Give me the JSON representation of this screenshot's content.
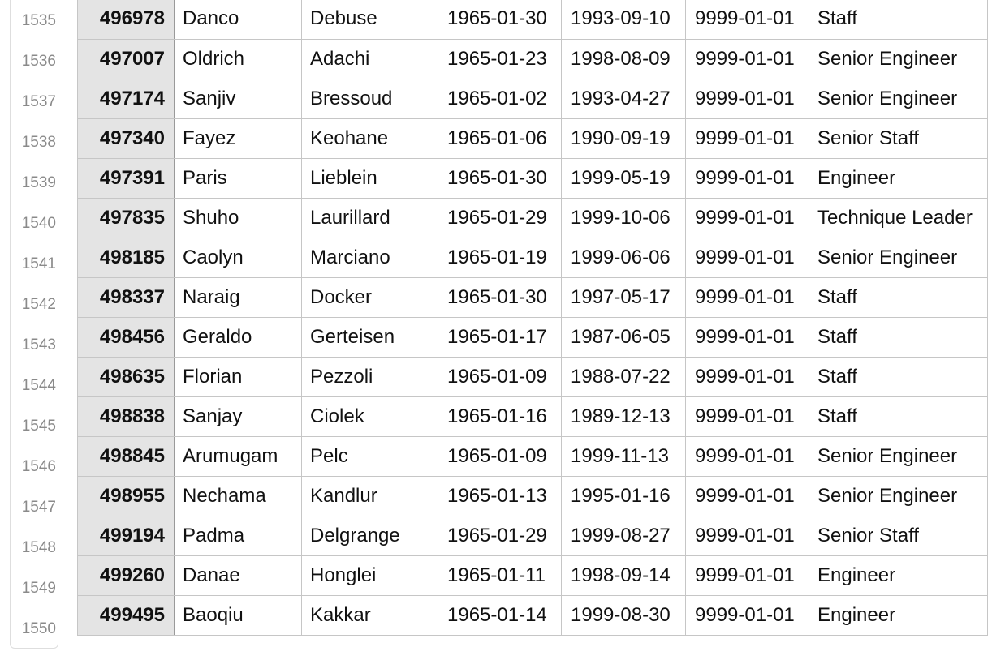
{
  "rows": [
    {
      "num": "1535",
      "emp_no": "496978",
      "first_name": "Danco",
      "last_name": "Debuse",
      "birth_date": "1965-01-30",
      "from_date": "1993-09-10",
      "to_date": "9999-01-01",
      "title": "Staff"
    },
    {
      "num": "1536",
      "emp_no": "497007",
      "first_name": "Oldrich",
      "last_name": "Adachi",
      "birth_date": "1965-01-23",
      "from_date": "1998-08-09",
      "to_date": "9999-01-01",
      "title": "Senior Engineer"
    },
    {
      "num": "1537",
      "emp_no": "497174",
      "first_name": "Sanjiv",
      "last_name": "Bressoud",
      "birth_date": "1965-01-02",
      "from_date": "1993-04-27",
      "to_date": "9999-01-01",
      "title": "Senior Engineer"
    },
    {
      "num": "1538",
      "emp_no": "497340",
      "first_name": "Fayez",
      "last_name": "Keohane",
      "birth_date": "1965-01-06",
      "from_date": "1990-09-19",
      "to_date": "9999-01-01",
      "title": "Senior Staff"
    },
    {
      "num": "1539",
      "emp_no": "497391",
      "first_name": "Paris",
      "last_name": "Lieblein",
      "birth_date": "1965-01-30",
      "from_date": "1999-05-19",
      "to_date": "9999-01-01",
      "title": "Engineer"
    },
    {
      "num": "1540",
      "emp_no": "497835",
      "first_name": "Shuho",
      "last_name": "Laurillard",
      "birth_date": "1965-01-29",
      "from_date": "1999-10-06",
      "to_date": "9999-01-01",
      "title": "Technique Leader"
    },
    {
      "num": "1541",
      "emp_no": "498185",
      "first_name": "Caolyn",
      "last_name": "Marciano",
      "birth_date": "1965-01-19",
      "from_date": "1999-06-06",
      "to_date": "9999-01-01",
      "title": "Senior Engineer"
    },
    {
      "num": "1542",
      "emp_no": "498337",
      "first_name": "Naraig",
      "last_name": "Docker",
      "birth_date": "1965-01-30",
      "from_date": "1997-05-17",
      "to_date": "9999-01-01",
      "title": "Staff"
    },
    {
      "num": "1543",
      "emp_no": "498456",
      "first_name": "Geraldo",
      "last_name": "Gerteisen",
      "birth_date": "1965-01-17",
      "from_date": "1987-06-05",
      "to_date": "9999-01-01",
      "title": "Staff"
    },
    {
      "num": "1544",
      "emp_no": "498635",
      "first_name": "Florian",
      "last_name": "Pezzoli",
      "birth_date": "1965-01-09",
      "from_date": "1988-07-22",
      "to_date": "9999-01-01",
      "title": "Staff"
    },
    {
      "num": "1545",
      "emp_no": "498838",
      "first_name": "Sanjay",
      "last_name": "Ciolek",
      "birth_date": "1965-01-16",
      "from_date": "1989-12-13",
      "to_date": "9999-01-01",
      "title": "Staff"
    },
    {
      "num": "1546",
      "emp_no": "498845",
      "first_name": "Arumugam",
      "last_name": "Pelc",
      "birth_date": "1965-01-09",
      "from_date": "1999-11-13",
      "to_date": "9999-01-01",
      "title": "Senior Engineer"
    },
    {
      "num": "1547",
      "emp_no": "498955",
      "first_name": "Nechama",
      "last_name": "Kandlur",
      "birth_date": "1965-01-13",
      "from_date": "1995-01-16",
      "to_date": "9999-01-01",
      "title": "Senior Engineer"
    },
    {
      "num": "1548",
      "emp_no": "499194",
      "first_name": "Padma",
      "last_name": "Delgrange",
      "birth_date": "1965-01-29",
      "from_date": "1999-08-27",
      "to_date": "9999-01-01",
      "title": "Senior Staff"
    },
    {
      "num": "1549",
      "emp_no": "499260",
      "first_name": "Danae",
      "last_name": "Honglei",
      "birth_date": "1965-01-11",
      "from_date": "1998-09-14",
      "to_date": "9999-01-01",
      "title": "Engineer"
    },
    {
      "num": "1550",
      "emp_no": "499495",
      "first_name": "Baoqiu",
      "last_name": "Kakkar",
      "birth_date": "1965-01-14",
      "from_date": "1999-08-30",
      "to_date": "9999-01-01",
      "title": "Engineer"
    }
  ]
}
